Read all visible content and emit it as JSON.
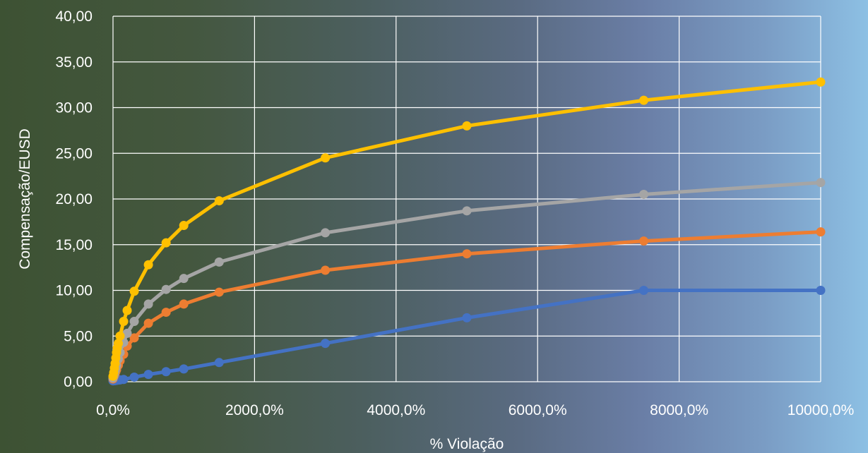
{
  "chart_data": {
    "type": "line",
    "title": "",
    "xlabel": "% Violação",
    "ylabel": "Compensação/EUSD",
    "xlim": [
      0,
      10000
    ],
    "ylim": [
      0,
      40
    ],
    "x_ticks": [
      0,
      2000,
      4000,
      6000,
      8000,
      10000
    ],
    "x_tick_labels": [
      "0,0%",
      "2000,0%",
      "4000,0%",
      "6000,0%",
      "8000,0%",
      "10000,0%"
    ],
    "y_ticks": [
      0,
      5,
      10,
      15,
      20,
      25,
      30,
      35,
      40
    ],
    "y_tick_labels": [
      "0,00",
      "5,00",
      "10,00",
      "15,00",
      "20,00",
      "25,00",
      "30,00",
      "35,00",
      "40,00"
    ],
    "grid": true,
    "legend": "none",
    "series": [
      {
        "color": "#4472c4",
        "points": [
          [
            0,
            0.1
          ],
          [
            10,
            0.11
          ],
          [
            20,
            0.12
          ],
          [
            30,
            0.13
          ],
          [
            40,
            0.14
          ],
          [
            50,
            0.15
          ],
          [
            75,
            0.18
          ],
          [
            100,
            0.2
          ],
          [
            150,
            0.25
          ],
          [
            300,
            0.5
          ],
          [
            500,
            0.8
          ],
          [
            750,
            1.1
          ],
          [
            1000,
            1.4
          ],
          [
            1500,
            2.1
          ],
          [
            3000,
            4.2
          ],
          [
            5000,
            7.0
          ],
          [
            7500,
            10.0
          ],
          [
            10000,
            10.0
          ]
        ]
      },
      {
        "color": "#ed7d31",
        "points": [
          [
            0,
            0.3
          ],
          [
            10,
            0.5
          ],
          [
            20,
            0.7
          ],
          [
            30,
            0.9
          ],
          [
            40,
            1.1
          ],
          [
            50,
            1.3
          ],
          [
            75,
            1.8
          ],
          [
            100,
            2.3
          ],
          [
            150,
            3.0
          ],
          [
            200,
            3.9
          ],
          [
            300,
            4.8
          ],
          [
            500,
            6.4
          ],
          [
            750,
            7.6
          ],
          [
            1000,
            8.5
          ],
          [
            1500,
            9.8
          ],
          [
            3000,
            12.2
          ],
          [
            5000,
            14.0
          ],
          [
            7500,
            15.4
          ],
          [
            10000,
            16.4
          ]
        ]
      },
      {
        "color": "#a5a5a5",
        "points": [
          [
            0,
            0.4
          ],
          [
            10,
            0.6
          ],
          [
            20,
            0.9
          ],
          [
            30,
            1.2
          ],
          [
            40,
            1.5
          ],
          [
            50,
            1.8
          ],
          [
            75,
            2.5
          ],
          [
            100,
            3.2
          ],
          [
            150,
            4.3
          ],
          [
            200,
            5.3
          ],
          [
            300,
            6.6
          ],
          [
            500,
            8.5
          ],
          [
            750,
            10.1
          ],
          [
            1000,
            11.3
          ],
          [
            1500,
            13.1
          ],
          [
            3000,
            16.3
          ],
          [
            5000,
            18.7
          ],
          [
            7500,
            20.5
          ],
          [
            10000,
            21.8
          ]
        ]
      },
      {
        "color": "#ffc000",
        "points": [
          [
            0,
            0.6
          ],
          [
            10,
            1.0
          ],
          [
            20,
            1.5
          ],
          [
            30,
            2.0
          ],
          [
            40,
            2.6
          ],
          [
            50,
            3.2
          ],
          [
            60,
            3.7
          ],
          [
            75,
            4.2
          ],
          [
            100,
            5.0
          ],
          [
            150,
            6.6
          ],
          [
            200,
            7.8
          ],
          [
            300,
            9.9
          ],
          [
            500,
            12.8
          ],
          [
            750,
            15.2
          ],
          [
            1000,
            17.1
          ],
          [
            1500,
            19.8
          ],
          [
            3000,
            24.5
          ],
          [
            5000,
            28.0
          ],
          [
            7500,
            30.8
          ],
          [
            10000,
            32.8
          ]
        ]
      }
    ]
  }
}
